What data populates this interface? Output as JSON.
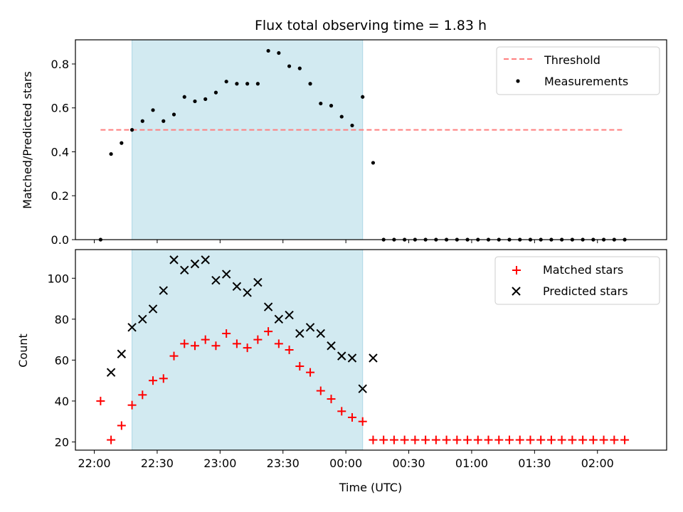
{
  "title": "Flux total observing time = 1.83 h",
  "colors": {
    "threshold": "#ff7f7f",
    "measurement": "#000000",
    "matched": "#ff0000",
    "predicted": "#000000",
    "shade": "#add8e6"
  },
  "chart_data": [
    {
      "type": "scatter",
      "panel": "top",
      "ylabel": "Matched/Predicted stars",
      "xlabel": "",
      "xlim": [
        -9,
        273
      ],
      "ylim": [
        0,
        0.91
      ],
      "x_axis": "minutes after 22:00 UTC",
      "yticks": [
        0.0,
        0.2,
        0.4,
        0.6,
        0.8
      ],
      "ytick_labels": [
        "0.0",
        "0.2",
        "0.4",
        "0.6",
        "0.8"
      ],
      "legend_position": "top-right",
      "shaded_span": [
        18,
        128
      ],
      "threshold": {
        "name": "Threshold",
        "style": "dashed",
        "y": 0.5,
        "x": [
          3,
          253
        ]
      },
      "series": [
        {
          "name": "Measurements",
          "marker": "dot",
          "x": [
            3,
            8,
            13,
            18,
            23,
            28,
            33,
            38,
            43,
            48,
            53,
            58,
            63,
            68,
            73,
            78,
            83,
            88,
            93,
            98,
            103,
            108,
            113,
            118,
            123,
            128,
            133,
            138,
            143,
            148,
            153,
            158,
            163,
            168,
            173,
            178,
            183,
            188,
            193,
            198,
            203,
            208,
            213,
            218,
            223,
            228,
            233,
            238,
            243,
            248,
            253
          ],
          "y": [
            0.0,
            0.39,
            0.44,
            0.5,
            0.54,
            0.59,
            0.54,
            0.57,
            0.65,
            0.63,
            0.64,
            0.67,
            0.72,
            0.71,
            0.71,
            0.71,
            0.86,
            0.85,
            0.79,
            0.78,
            0.71,
            0.62,
            0.61,
            0.56,
            0.52,
            0.65,
            0.35,
            0.0,
            0.0,
            0.0,
            0.0,
            0.0,
            0.0,
            0.0,
            0.0,
            0.0,
            0.0,
            0.0,
            0.0,
            0.0,
            0.0,
            0.0,
            0.0,
            0.0,
            0.0,
            0.0,
            0.0,
            0.0,
            0.0,
            0.0,
            0.0
          ]
        }
      ]
    },
    {
      "type": "scatter",
      "panel": "bottom",
      "ylabel": "Count",
      "xlabel": "Time (UTC)",
      "xlim": [
        -9,
        273
      ],
      "ylim": [
        16,
        114
      ],
      "x_axis": "minutes after 22:00 UTC",
      "xticks": [
        0,
        30,
        60,
        90,
        120,
        150,
        180,
        210,
        240
      ],
      "xtick_labels": [
        "22:00",
        "22:30",
        "23:00",
        "23:30",
        "00:00",
        "00:30",
        "01:00",
        "01:30",
        "02:00"
      ],
      "yticks": [
        20,
        40,
        60,
        80,
        100
      ],
      "ytick_labels": [
        "20",
        "40",
        "60",
        "80",
        "100"
      ],
      "legend_position": "top-right",
      "shaded_span": [
        18,
        128
      ],
      "series": [
        {
          "name": "Matched stars",
          "marker": "plus",
          "x": [
            3,
            8,
            13,
            18,
            23,
            28,
            33,
            38,
            43,
            48,
            53,
            58,
            63,
            68,
            73,
            78,
            83,
            88,
            93,
            98,
            103,
            108,
            113,
            118,
            123,
            128,
            133,
            138,
            143,
            148,
            153,
            158,
            163,
            168,
            173,
            178,
            183,
            188,
            193,
            198,
            203,
            208,
            213,
            218,
            223,
            228,
            233,
            238,
            243,
            248,
            253
          ],
          "y": [
            40,
            21,
            28,
            38,
            43,
            50,
            51,
            62,
            68,
            67,
            70,
            67,
            73,
            68,
            66,
            70,
            74,
            68,
            65,
            57,
            54,
            45,
            41,
            35,
            32,
            30,
            21,
            21,
            21,
            21,
            21,
            21,
            21,
            21,
            21,
            21,
            21,
            21,
            21,
            21,
            21,
            21,
            21,
            21,
            21,
            21,
            21,
            21,
            21,
            21,
            21
          ]
        },
        {
          "name": "Predicted stars",
          "marker": "x",
          "x": [
            8,
            13,
            18,
            23,
            28,
            33,
            38,
            43,
            48,
            53,
            58,
            63,
            68,
            73,
            78,
            83,
            88,
            93,
            98,
            103,
            108,
            113,
            118,
            123,
            128,
            133
          ],
          "y": [
            54,
            63,
            76,
            80,
            85,
            94,
            109,
            104,
            107,
            109,
            99,
            102,
            96,
            93,
            98,
            86,
            80,
            82,
            73,
            76,
            73,
            67,
            62,
            61,
            46,
            61
          ]
        }
      ]
    }
  ]
}
